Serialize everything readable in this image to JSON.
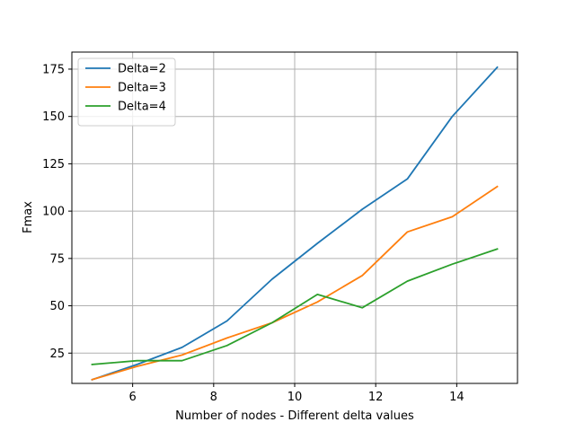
{
  "chart_data": {
    "type": "line",
    "title": "",
    "xlabel": "Number of nodes - Different delta values",
    "ylabel": "Fmax",
    "xlim": [
      4.5,
      15.5
    ],
    "ylim": [
      9,
      184
    ],
    "xticks": [
      6,
      8,
      10,
      12,
      14
    ],
    "yticks": [
      25,
      50,
      75,
      100,
      125,
      150,
      175
    ],
    "grid": true,
    "legend": "top-left",
    "x": [
      5.0,
      6.11,
      7.22,
      8.33,
      9.44,
      10.56,
      11.67,
      12.78,
      13.89,
      15.0
    ],
    "series": [
      {
        "name": "Delta=2",
        "color": "#1f77b4",
        "values": [
          11,
          19,
          28,
          42,
          64,
          83,
          101,
          117,
          150,
          176
        ]
      },
      {
        "name": "Delta=3",
        "color": "#ff7f0e",
        "values": [
          11,
          18,
          24,
          33,
          41,
          52,
          66,
          89,
          97,
          113
        ]
      },
      {
        "name": "Delta=4",
        "color": "#2ca02c",
        "values": [
          19,
          21,
          21,
          29,
          41,
          56,
          49,
          63,
          72,
          80
        ]
      }
    ]
  }
}
